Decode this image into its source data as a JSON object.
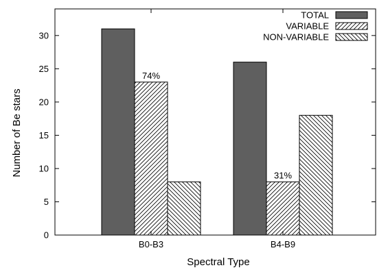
{
  "chart_data": {
    "type": "bar",
    "categories": [
      "B0-B3",
      "B4-B9"
    ],
    "series": [
      {
        "name": "TOTAL",
        "values": [
          31,
          26
        ],
        "fill": "solid",
        "color": "#5f5f5f"
      },
      {
        "name": "VARIABLE",
        "values": [
          23,
          8
        ],
        "fill": "hatch-forward",
        "color": "#000000"
      },
      {
        "name": "NON-VARIABLE",
        "values": [
          8,
          18
        ],
        "fill": "hatch-backward",
        "color": "#000000"
      }
    ],
    "data_labels": [
      {
        "series": "VARIABLE",
        "category": "B0-B3",
        "text": "74%"
      },
      {
        "series": "VARIABLE",
        "category": "B4-B9",
        "text": "31%"
      }
    ],
    "xlabel": "Spectral Type",
    "ylabel": "Number of Be stars",
    "ylim": [
      0,
      34
    ],
    "yticks": [
      0,
      5,
      10,
      15,
      20,
      25,
      30
    ],
    "grid": false,
    "legend_position": "top-right"
  }
}
